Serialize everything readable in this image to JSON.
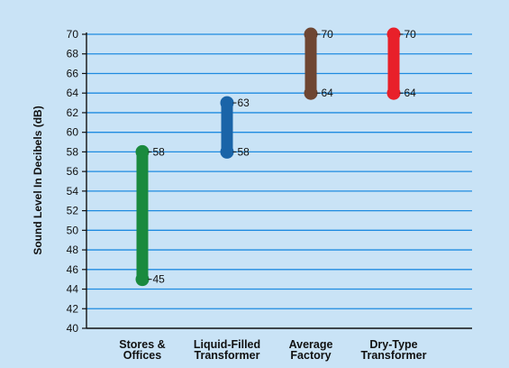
{
  "chart_data": {
    "type": "range",
    "ylabel": "Sound Level In Decibels (dB)",
    "xlabel": "",
    "ylim": [
      40,
      70
    ],
    "ytick_step": 2,
    "grid": true,
    "categories": [
      [
        "Stores &",
        "Offices"
      ],
      [
        "Liquid-Filled",
        "Transformer"
      ],
      [
        "Average",
        "Factory"
      ],
      [
        "Dry-Type",
        "Transformer"
      ]
    ],
    "ranges": [
      {
        "low": 45,
        "high": 58,
        "color": "#1a8a3e"
      },
      {
        "low": 58,
        "high": 63,
        "color": "#1a64a8"
      },
      {
        "low": 64,
        "high": 70,
        "color": "#6e4632"
      },
      {
        "low": 64,
        "high": 70,
        "color": "#e8202a"
      }
    ]
  },
  "colors": {
    "background": "#c9e3f6",
    "gridline": "#1e8be0",
    "axis": "#111111"
  }
}
